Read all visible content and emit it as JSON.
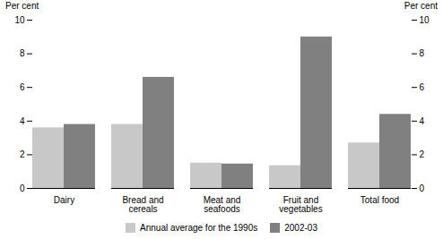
{
  "chart_data": {
    "type": "bar",
    "categories": [
      "Dairy",
      "Bread and\ncereals",
      "Meat and\nseafoods",
      "Fruit and\nvegetables",
      "Total food"
    ],
    "series": [
      {
        "name": "Annual average for the 1990s",
        "color": "#c8c8c8",
        "values": [
          3.6,
          3.8,
          1.5,
          1.35,
          2.7
        ]
      },
      {
        "name": "2002-03",
        "color": "#808080",
        "values": [
          3.8,
          6.6,
          1.45,
          9.0,
          4.4
        ]
      }
    ],
    "ylabel": "Per cent",
    "y2label": "Per cent",
    "ylim": [
      0,
      10
    ],
    "yticks": [
      0,
      2,
      4,
      6,
      8,
      10
    ],
    "y2lim": [
      0,
      10
    ],
    "y2ticks": [
      0,
      2,
      4,
      6,
      8,
      10
    ],
    "grid": false,
    "legend": "bottom"
  }
}
